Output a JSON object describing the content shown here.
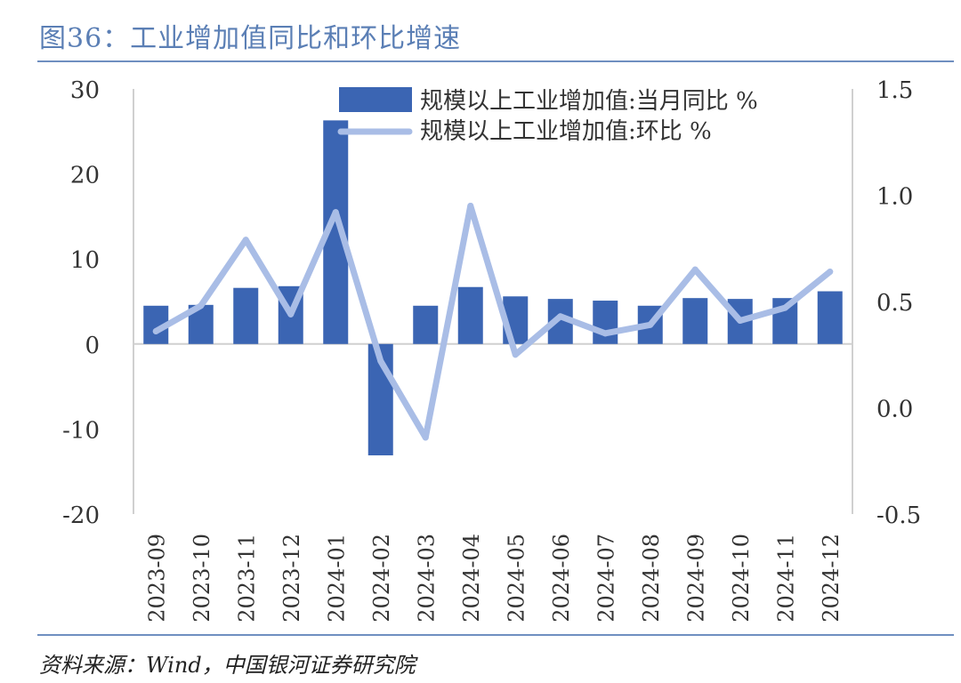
{
  "title": "图36：工业增加值同比和环比增速",
  "source": "资料来源：Wind，中国银河证券研究院",
  "colors": {
    "bar": "#3b65b3",
    "line": "#a9bde6",
    "rule": "#6f8fc0",
    "title": "#5b7fb5"
  },
  "chart_data": {
    "type": "bar+line",
    "categories": [
      "2023-09",
      "2023-10",
      "2023-11",
      "2023-12",
      "2024-01",
      "2024-02",
      "2024-03",
      "2024-04",
      "2024-05",
      "2024-06",
      "2024-07",
      "2024-08",
      "2024-09",
      "2024-10",
      "2024-11",
      "2024-12"
    ],
    "series": [
      {
        "name": "规模以上工业增加值:当月同比 %",
        "type": "bar",
        "axis": "left",
        "values": [
          4.5,
          4.6,
          6.6,
          6.8,
          26.3,
          -13.1,
          4.5,
          6.7,
          5.6,
          5.3,
          5.1,
          4.5,
          5.4,
          5.3,
          5.4,
          6.2
        ]
      },
      {
        "name": "规模以上工业增加值:环比 %",
        "type": "line",
        "axis": "right",
        "values": [
          0.36,
          0.48,
          0.79,
          0.44,
          0.92,
          0.22,
          -0.14,
          0.95,
          0.25,
          0.43,
          0.35,
          0.39,
          0.65,
          0.41,
          0.47,
          0.64
        ]
      }
    ],
    "yleft": {
      "min": -20,
      "max": 30,
      "ticks": [
        "30",
        "20",
        "10",
        "0",
        "-10",
        "-20"
      ]
    },
    "yright": {
      "min": -0.5,
      "max": 1.5,
      "ticks": [
        "1.5",
        "1.0",
        "0.5",
        "0.0",
        "-0.5"
      ]
    },
    "legend": "top-right",
    "grid": false
  }
}
